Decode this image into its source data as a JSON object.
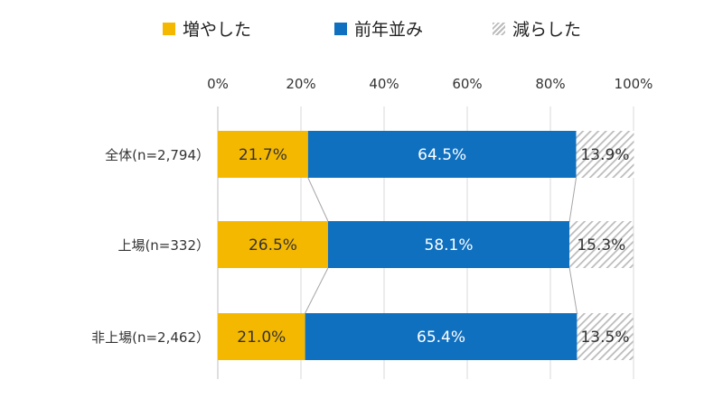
{
  "chart_data": {
    "type": "bar",
    "orientation": "horizontal",
    "stacked": true,
    "percent": true,
    "categories": [
      "全体(n=2,794）",
      "上場(n=332）",
      "非上場(n=2,462）"
    ],
    "series": [
      {
        "name": "増やした",
        "values": [
          21.7,
          26.5,
          21.0
        ],
        "color": "#F5B800",
        "label_color": "#333333",
        "pattern": "solid"
      },
      {
        "name": "前年並み",
        "values": [
          64.5,
          58.1,
          65.4
        ],
        "color": "#1070C0",
        "label_color": "#ffffff",
        "pattern": "solid"
      },
      {
        "name": "減らした",
        "values": [
          13.9,
          15.3,
          13.5
        ],
        "color": "#BBBBBB",
        "label_color": "#333333",
        "pattern": "hatched"
      }
    ],
    "data_labels": [
      [
        "21.7%",
        "26.5%",
        "21.0%"
      ],
      [
        "64.5%",
        "58.1%",
        "65.4%"
      ],
      [
        "13.9%",
        "15.3%",
        "13.5%"
      ]
    ],
    "x_ticks": [
      "0%",
      "20%",
      "40%",
      "60%",
      "80%",
      "100%"
    ],
    "xlim": [
      0,
      100
    ],
    "grid": true,
    "legend_position": "top",
    "series_lines": true
  }
}
